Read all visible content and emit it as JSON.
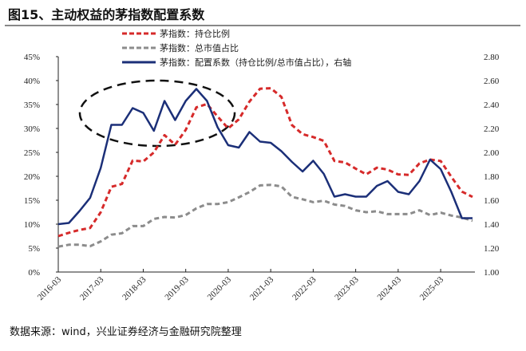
{
  "title": "图15、主动权益的茅指数配置系数",
  "source": "数据来源：wind，兴业证券经济与金融研究院整理",
  "chart_data": {
    "type": "line",
    "title": "图15、主动权益的茅指数配置系数",
    "x": [
      "2016-03",
      "2016-06",
      "2016-09",
      "2016-12",
      "2017-03",
      "2017-06",
      "2017-09",
      "2017-12",
      "2018-03",
      "2018-06",
      "2018-09",
      "2018-12",
      "2019-03",
      "2019-06",
      "2019-09",
      "2019-12",
      "2020-03",
      "2020-06",
      "2020-09",
      "2020-12",
      "2021-03",
      "2021-06",
      "2021-09",
      "2021-12",
      "2022-03",
      "2022-06",
      "2022-09",
      "2022-12",
      "2023-03",
      "2023-06",
      "2023-09",
      "2023-12",
      "2024-03",
      "2024-06",
      "2024-09",
      "2024-12",
      "2025-03",
      "2025-06",
      "2025-09",
      "2025-12"
    ],
    "x_tick_labels": [
      "2016-03",
      "2017-03",
      "2018-03",
      "2019-03",
      "2020-03",
      "2021-03",
      "2022-03",
      "2023-03",
      "2024-03",
      "2025-03"
    ],
    "left_axis": {
      "ylim": [
        0,
        45
      ],
      "tick_labels": [
        "0%",
        "5%",
        "10%",
        "15%",
        "20%",
        "25%",
        "30%",
        "35%",
        "40%",
        "45%"
      ]
    },
    "right_axis": {
      "ylim": [
        1.0,
        2.8
      ],
      "tick_labels": [
        "1.00",
        "1.20",
        "1.40",
        "1.60",
        "1.80",
        "2.00",
        "2.20",
        "2.40",
        "2.60",
        "2.80"
      ]
    },
    "series": [
      {
        "name": "茅指数：持仓比例",
        "axis": "left",
        "style": "dashed",
        "color": "#d62a2a",
        "values": [
          7.5,
          8.2,
          8.8,
          9.2,
          12.5,
          17.8,
          18.4,
          23.3,
          23.1,
          25.0,
          28.6,
          26.6,
          29.7,
          34.4,
          35.1,
          32.5,
          30.0,
          31.9,
          35.6,
          38.3,
          38.4,
          36.6,
          30.7,
          28.8,
          28.2,
          27.4,
          23.2,
          22.9,
          21.6,
          20.4,
          21.8,
          21.4,
          20.4,
          20.3,
          22.7,
          23.5,
          23.2,
          19.9,
          16.8,
          15.7
        ]
      },
      {
        "name": "茅指数：总市值占比",
        "axis": "left",
        "style": "dashed",
        "color": "#8c8c8c",
        "values": [
          5.3,
          5.7,
          5.7,
          5.4,
          6.4,
          7.8,
          8.1,
          9.6,
          9.6,
          11.1,
          11.5,
          11.4,
          11.9,
          13.3,
          14.2,
          14.2,
          14.6,
          15.6,
          16.7,
          18.1,
          18.2,
          17.9,
          15.7,
          15.2,
          14.6,
          14.9,
          14.1,
          13.8,
          12.9,
          12.5,
          12.7,
          12.1,
          12.1,
          12.1,
          12.9,
          11.9,
          12.4,
          11.8,
          11.4,
          10.7
        ]
      },
      {
        "name": "茅指数：配置系数（持仓比例/总市值占比），右轴",
        "axis": "right",
        "style": "solid",
        "color": "#1b2f78",
        "values": [
          1.4,
          1.41,
          1.51,
          1.62,
          1.87,
          2.23,
          2.23,
          2.37,
          2.33,
          2.18,
          2.43,
          2.27,
          2.43,
          2.53,
          2.43,
          2.21,
          2.06,
          2.04,
          2.17,
          2.09,
          2.08,
          2.01,
          1.92,
          1.84,
          1.93,
          1.82,
          1.63,
          1.65,
          1.63,
          1.63,
          1.72,
          1.76,
          1.67,
          1.65,
          1.76,
          1.94,
          1.86,
          1.67,
          1.45,
          1.45
        ]
      }
    ],
    "legend_placement": "top-left",
    "grid": false,
    "annotations": [
      "dashed ellipse highlighting 2017-2019 peak"
    ]
  }
}
